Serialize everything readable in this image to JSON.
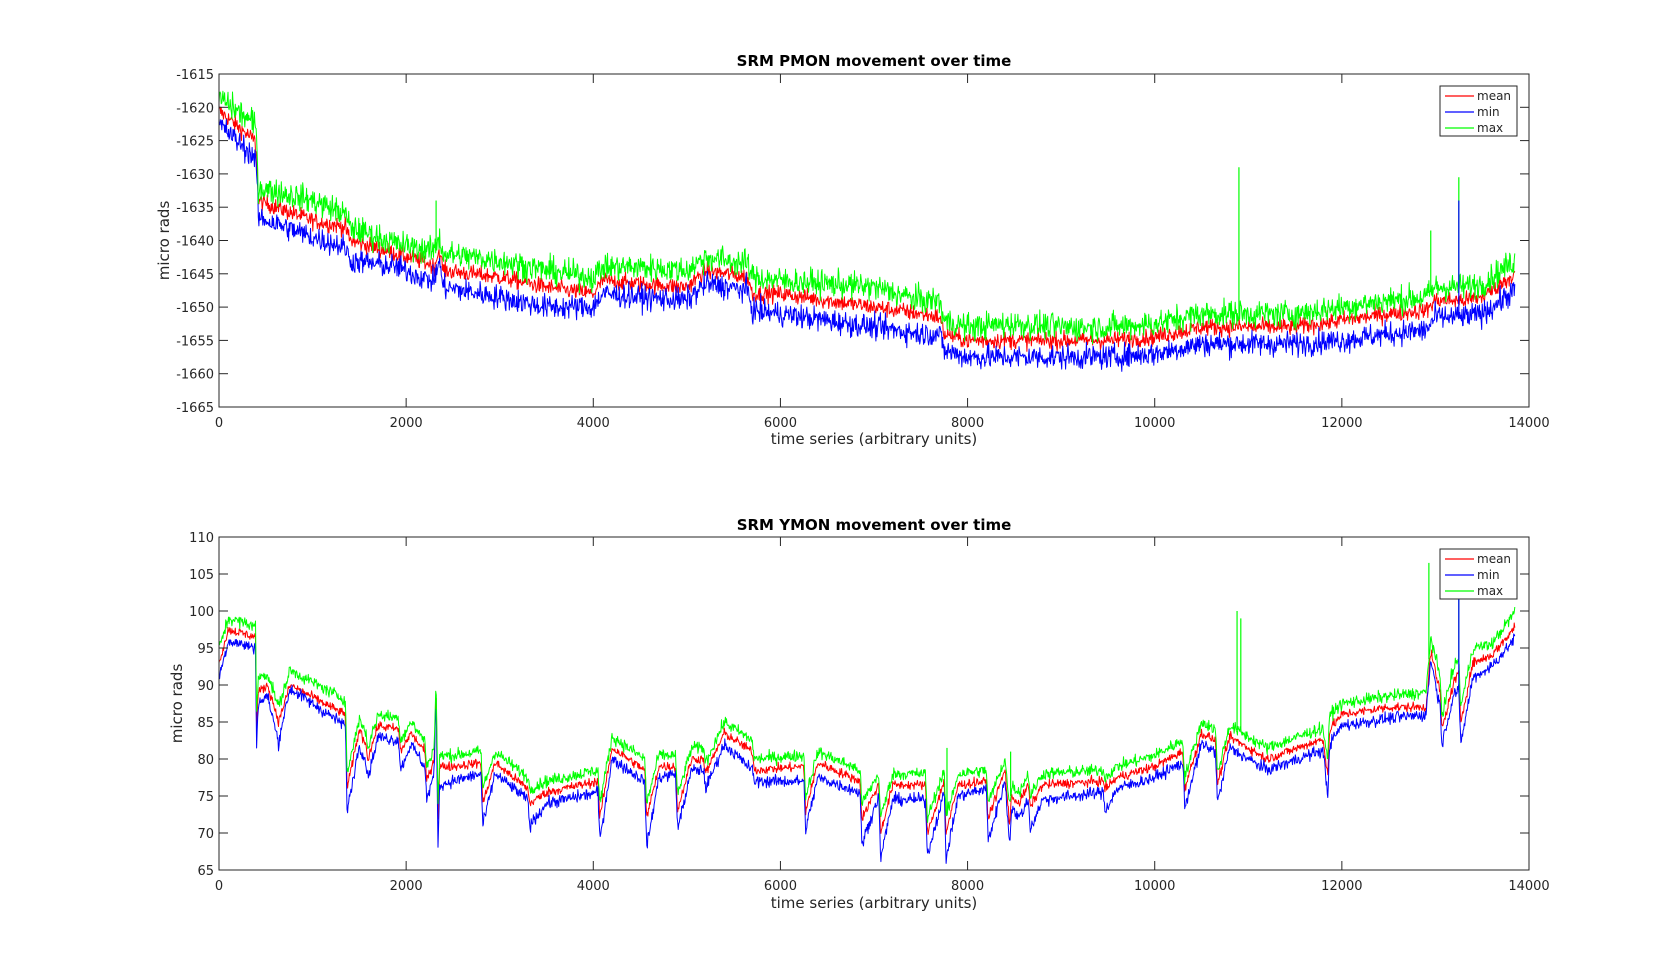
{
  "chart_data": [
    {
      "type": "line",
      "title": "SRM PMON movement over time",
      "xlabel": "time series (arbitrary units)",
      "ylabel": "micro rads",
      "xlim": [
        0,
        14000
      ],
      "ylim": [
        -1665,
        -1615
      ],
      "xticks": [
        0,
        2000,
        4000,
        6000,
        8000,
        10000,
        12000,
        14000
      ],
      "yticks": [
        -1615,
        -1620,
        -1625,
        -1630,
        -1635,
        -1640,
        -1645,
        -1650,
        -1655,
        -1660,
        -1665
      ],
      "grid": false,
      "legend_position": "top-right",
      "noise": [
        1.4,
        2.0,
        2.2
      ],
      "series": [
        {
          "name": "mean",
          "color": "#ff0000",
          "x": [
            0,
            380,
            400,
            420,
            1000,
            1350,
            1400,
            1900,
            2250,
            2300,
            2350,
            2400,
            3000,
            3500,
            4000,
            4100,
            4500,
            5000,
            5200,
            5650,
            5700,
            6000,
            6500,
            7000,
            7500,
            7700,
            7750,
            8000,
            8500,
            9000,
            9500,
            10000,
            10500,
            11000,
            11500,
            12000,
            12500,
            12900,
            13000,
            13300,
            13500,
            13850
          ],
          "y": [
            -1620.5,
            -1625,
            -1626.5,
            -1634,
            -1637,
            -1638,
            -1640,
            -1642,
            -1643.5,
            -1644,
            -1641.5,
            -1644.5,
            -1645.5,
            -1647,
            -1648,
            -1646,
            -1646.5,
            -1647,
            -1644.5,
            -1645.5,
            -1648,
            -1648,
            -1649,
            -1650,
            -1651,
            -1651.5,
            -1654,
            -1655,
            -1655,
            -1655,
            -1655,
            -1654.5,
            -1653,
            -1653,
            -1653,
            -1652,
            -1651,
            -1650.5,
            -1649,
            -1649,
            -1648.5,
            -1645
          ]
        },
        {
          "name": "min",
          "color": "#0000ff",
          "x": [
            0,
            380,
            400,
            420,
            1000,
            1350,
            1400,
            1900,
            2250,
            2300,
            2350,
            2400,
            3000,
            3500,
            4000,
            4100,
            4500,
            5000,
            5200,
            5650,
            5700,
            6000,
            6500,
            7000,
            7500,
            7700,
            7750,
            8000,
            8500,
            9000,
            9500,
            10000,
            10500,
            11000,
            11500,
            12000,
            12500,
            12900,
            13000,
            13300,
            13500,
            13850
          ],
          "y": [
            -1622.5,
            -1627.5,
            -1629,
            -1636.5,
            -1639.5,
            -1641,
            -1643,
            -1644,
            -1646,
            -1646,
            -1643,
            -1647,
            -1648.5,
            -1650,
            -1650,
            -1648,
            -1648.5,
            -1649,
            -1646.5,
            -1647.5,
            -1650.5,
            -1651,
            -1652,
            -1653,
            -1654,
            -1654,
            -1656.5,
            -1657.5,
            -1657.5,
            -1657.5,
            -1657.5,
            -1657,
            -1655.5,
            -1655.5,
            -1655.5,
            -1655,
            -1654,
            -1653.5,
            -1651.5,
            -1651.5,
            -1651,
            -1647.5
          ]
        },
        {
          "name": "max",
          "color": "#00ff00",
          "x": [
            0,
            380,
            400,
            420,
            1000,
            1350,
            1400,
            1900,
            2250,
            2300,
            2350,
            2400,
            3000,
            3500,
            4000,
            4100,
            4500,
            5000,
            5200,
            5650,
            5700,
            6000,
            6500,
            7000,
            7500,
            7700,
            7750,
            8000,
            8500,
            9000,
            9500,
            10000,
            10500,
            11000,
            11500,
            12000,
            12500,
            12900,
            13000,
            13300,
            13500,
            13850
          ],
          "y": [
            -1618.5,
            -1622.5,
            -1624,
            -1632,
            -1634,
            -1636,
            -1638,
            -1640.5,
            -1641.5,
            -1641.5,
            -1639.5,
            -1642,
            -1643,
            -1644.5,
            -1645.5,
            -1644,
            -1644,
            -1644.5,
            -1642.5,
            -1643.5,
            -1645.5,
            -1646,
            -1646.5,
            -1647,
            -1649,
            -1649,
            -1652,
            -1653,
            -1652.5,
            -1653,
            -1653,
            -1652.5,
            -1651,
            -1651,
            -1651,
            -1650,
            -1649,
            -1648.5,
            -1647,
            -1647,
            -1646.5,
            -1643
          ]
        }
      ],
      "spikes": [
        {
          "series": "max",
          "x": 10900,
          "y": -1629
        },
        {
          "series": "max",
          "x": 13250,
          "y": -1630.5
        },
        {
          "series": "min",
          "x": 13250,
          "y": -1634
        },
        {
          "series": "max",
          "x": 12950,
          "y": -1638.5
        },
        {
          "series": "max",
          "x": 2320,
          "y": -1634
        }
      ]
    },
    {
      "type": "line",
      "title": "SRM YMON movement over time",
      "xlabel": "time series (arbitrary units)",
      "ylabel": "micro rads",
      "xlim": [
        0,
        14000
      ],
      "ylim": [
        65,
        110
      ],
      "xticks": [
        0,
        2000,
        4000,
        6000,
        8000,
        10000,
        12000,
        14000
      ],
      "yticks": [
        65,
        70,
        75,
        80,
        85,
        90,
        95,
        100,
        105,
        110
      ],
      "grid": false,
      "legend_position": "top-right",
      "noise": [
        0.7,
        0.9,
        0.9
      ],
      "series": [
        {
          "name": "mean",
          "color": "#ff0000",
          "x": [
            0,
            100,
            390,
            400,
            420,
            520,
            640,
            660,
            760,
            1350,
            1370,
            1500,
            1570,
            1590,
            1700,
            1920,
            1940,
            2050,
            2200,
            2220,
            2300,
            2320,
            2340,
            2360,
            2500,
            2800,
            2820,
            2950,
            3300,
            3320,
            3500,
            4050,
            4070,
            4200,
            4550,
            4570,
            4700,
            4880,
            4900,
            5050,
            5180,
            5200,
            5400,
            5700,
            5720,
            6250,
            6270,
            6400,
            6850,
            6870,
            7050,
            7070,
            7200,
            7550,
            7570,
            7750,
            7770,
            7900,
            8200,
            8220,
            8400,
            8450,
            8470,
            8550,
            8650,
            8670,
            8800,
            9450,
            9470,
            9600,
            10000,
            10300,
            10320,
            10500,
            10650,
            10670,
            10800,
            11200,
            11750,
            11800,
            11850,
            11870,
            12000,
            12500,
            12900,
            12950,
            13050,
            13070,
            13200,
            13250,
            13270,
            13400,
            13600,
            13800,
            13850
          ],
          "y": [
            93,
            97.5,
            96.5,
            84,
            89,
            90,
            85,
            86,
            90,
            86,
            76,
            84,
            82,
            80,
            84.5,
            84,
            81,
            83.5,
            81,
            77,
            80,
            90,
            72,
            79,
            79,
            79.5,
            74,
            79.5,
            76,
            74,
            75.5,
            77,
            72,
            81.5,
            78.5,
            72,
            79,
            79,
            73,
            80,
            80,
            78,
            83.5,
            81,
            78.5,
            79,
            73,
            79.5,
            77,
            72,
            76.5,
            70,
            76.5,
            76.5,
            70,
            77,
            70,
            76.5,
            77,
            72,
            78.5,
            71,
            75,
            74,
            76.5,
            73.5,
            76.5,
            77,
            76,
            77.5,
            79,
            81,
            76,
            83.5,
            82.5,
            76.5,
            83,
            80,
            82.5,
            82.5,
            78,
            84,
            86,
            87,
            87,
            94.5,
            89,
            84,
            90.5,
            91.5,
            85,
            93,
            94,
            97,
            98
          ]
        },
        {
          "name": "min",
          "color": "#0000ff",
          "x": [
            0,
            100,
            390,
            400,
            420,
            520,
            640,
            660,
            760,
            1350,
            1370,
            1500,
            1570,
            1590,
            1700,
            1920,
            1940,
            2050,
            2200,
            2220,
            2300,
            2320,
            2340,
            2360,
            2500,
            2800,
            2820,
            2950,
            3300,
            3320,
            3500,
            4050,
            4070,
            4200,
            4550,
            4570,
            4700,
            4880,
            4900,
            5050,
            5180,
            5200,
            5400,
            5700,
            5720,
            6250,
            6270,
            6400,
            6850,
            6870,
            7050,
            7070,
            7200,
            7550,
            7570,
            7750,
            7770,
            7900,
            8200,
            8220,
            8400,
            8450,
            8470,
            8550,
            8650,
            8670,
            8800,
            9450,
            9470,
            9600,
            10000,
            10300,
            10320,
            10500,
            10650,
            10670,
            10800,
            11200,
            11750,
            11800,
            11850,
            11870,
            12000,
            12500,
            12900,
            12950,
            13050,
            13070,
            13200,
            13250,
            13270,
            13400,
            13600,
            13800,
            13850
          ],
          "y": [
            91,
            96,
            95,
            81.5,
            87.5,
            88.5,
            82,
            84,
            89.5,
            84.5,
            73,
            82,
            79.5,
            77.5,
            83,
            82.5,
            78.5,
            82,
            79,
            74.5,
            78,
            89,
            68.5,
            76.5,
            77,
            78,
            71,
            78,
            74.5,
            71,
            74,
            75.5,
            69,
            80,
            77,
            68,
            77.5,
            78,
            70.5,
            78.5,
            78.5,
            76,
            82,
            78.5,
            77,
            77,
            70.5,
            77.5,
            75.5,
            68.5,
            75,
            66.5,
            74.5,
            74.5,
            67,
            75.5,
            66.5,
            75,
            76,
            69,
            77,
            68.5,
            73.5,
            72,
            74.5,
            70.5,
            74.5,
            75.5,
            73,
            76,
            77.5,
            79.5,
            73.5,
            82,
            81,
            74,
            81.5,
            78.5,
            81,
            81,
            75,
            82,
            84.5,
            85.5,
            86,
            93.5,
            87,
            82,
            89,
            89,
            82,
            91,
            92.5,
            95.5,
            96.5
          ]
        },
        {
          "name": "max",
          "color": "#00ff00",
          "x": [
            0,
            100,
            390,
            400,
            420,
            520,
            640,
            660,
            760,
            1350,
            1370,
            1500,
            1570,
            1590,
            1700,
            1920,
            1940,
            2050,
            2200,
            2220,
            2300,
            2320,
            2340,
            2360,
            2500,
            2800,
            2820,
            2950,
            3300,
            3320,
            3500,
            4050,
            4070,
            4200,
            4550,
            4570,
            4700,
            4880,
            4900,
            5050,
            5180,
            5200,
            5400,
            5700,
            5720,
            6250,
            6270,
            6400,
            6850,
            6870,
            7050,
            7070,
            7200,
            7550,
            7570,
            7750,
            7770,
            7900,
            8200,
            8220,
            8400,
            8450,
            8470,
            8550,
            8650,
            8670,
            8800,
            9450,
            9470,
            9600,
            10000,
            10300,
            10320,
            10500,
            10650,
            10670,
            10800,
            11200,
            11750,
            11800,
            11850,
            11870,
            12000,
            12500,
            12900,
            12950,
            13050,
            13070,
            13200,
            13250,
            13270,
            13400,
            13600,
            13800,
            13850
          ],
          "y": [
            95,
            99,
            98,
            86,
            91,
            91.5,
            87,
            88,
            92,
            88,
            78,
            85.5,
            83.5,
            81.5,
            86,
            85.5,
            82.5,
            85,
            82.5,
            79,
            81.5,
            91,
            74,
            80.5,
            80.5,
            81,
            76,
            81,
            77.5,
            76,
            77,
            78.5,
            74,
            83,
            80,
            74,
            80.5,
            80.5,
            75,
            81.5,
            81.5,
            79.5,
            85,
            82.5,
            80,
            80.5,
            75,
            81,
            78.5,
            74,
            78,
            72,
            78,
            78,
            72,
            78.5,
            72,
            78,
            78.5,
            74,
            80,
            73.5,
            76.5,
            75.5,
            78,
            75,
            78,
            78.5,
            77.5,
            79,
            80.5,
            82.5,
            77.5,
            85,
            84,
            78,
            84.5,
            81.5,
            84,
            84,
            80,
            86,
            87.5,
            88.5,
            89,
            96.5,
            91,
            86,
            92.5,
            93.5,
            87,
            95,
            95.5,
            99,
            100
          ]
        }
      ],
      "spikes": [
        {
          "series": "max",
          "x": 10880,
          "y": 100
        },
        {
          "series": "max",
          "x": 10920,
          "y": 99
        },
        {
          "series": "max",
          "x": 12930,
          "y": 106.5
        },
        {
          "series": "max",
          "x": 13250,
          "y": 105
        },
        {
          "series": "min",
          "x": 13250,
          "y": 103
        },
        {
          "series": "max",
          "x": 7780,
          "y": 81.5
        },
        {
          "series": "max",
          "x": 8460,
          "y": 81
        }
      ]
    }
  ]
}
